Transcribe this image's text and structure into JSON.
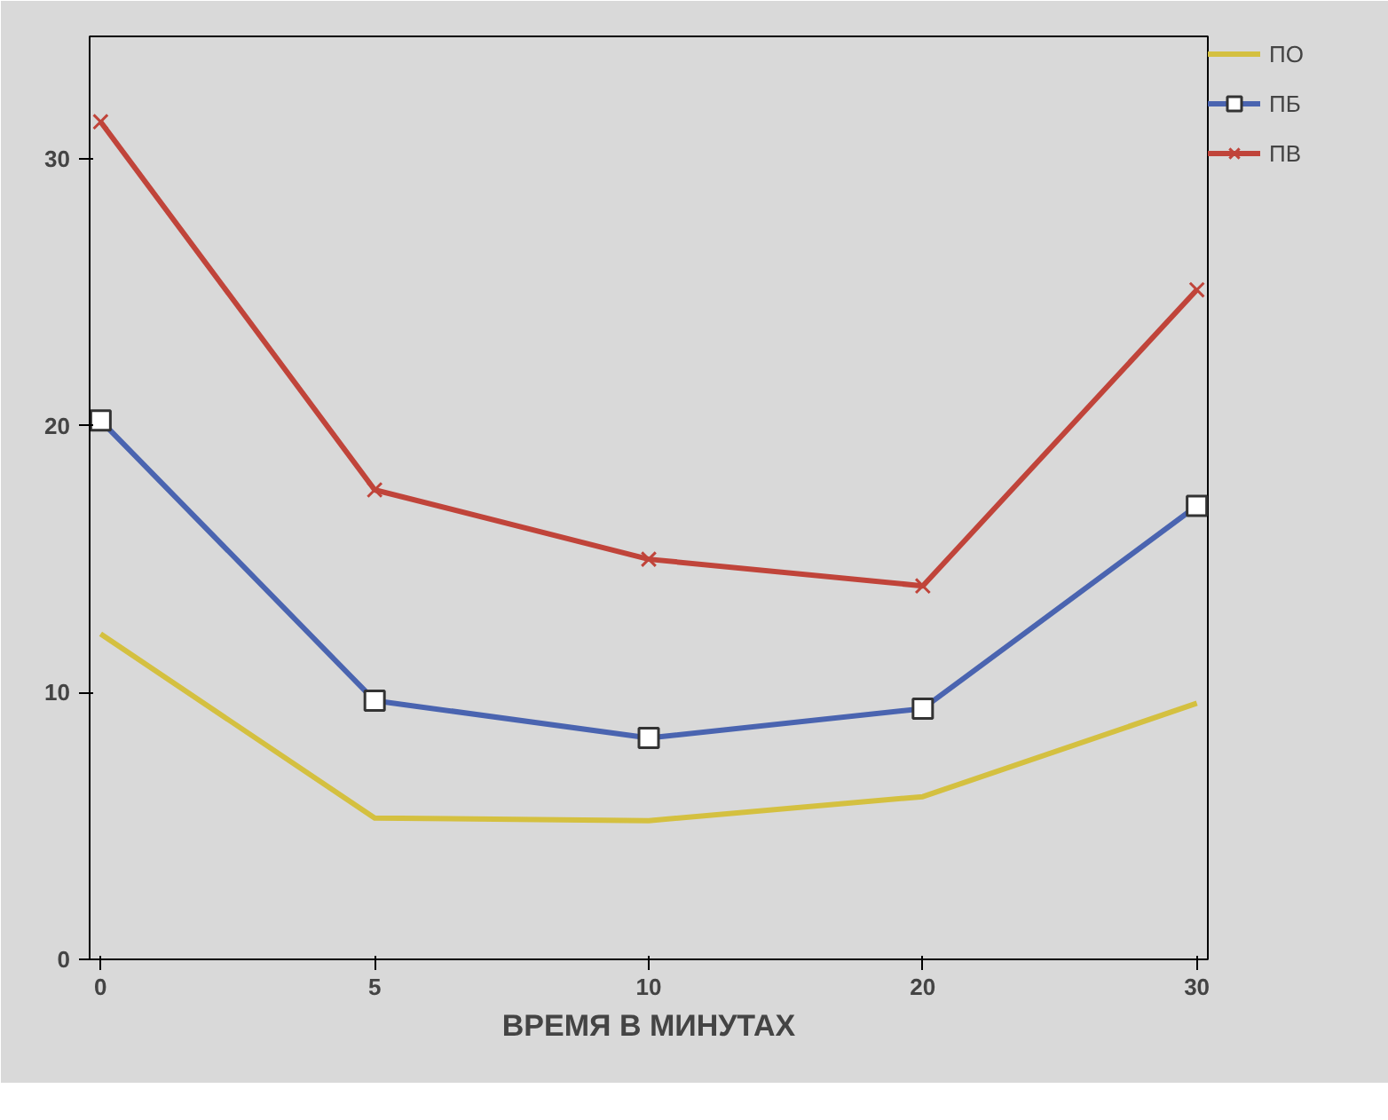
{
  "chart_data": {
    "type": "line",
    "xlabel": "ВРЕМЯ В МИНУТАХ",
    "categories": [
      "0",
      "5",
      "10",
      "20",
      "30"
    ],
    "ylim": [
      0,
      34.6
    ],
    "yticks": [
      0,
      10,
      20,
      30
    ],
    "grid": false,
    "legend": "top right",
    "line_style": "solid",
    "series": [
      {
        "name": "ПО",
        "color": "#d4c040",
        "marker": "none",
        "values": [
          12.2,
          5.3,
          5.2,
          6.1,
          9.6
        ]
      },
      {
        "name": "ПБ",
        "color": "#4a64b0",
        "marker": "square",
        "values": [
          20.2,
          9.7,
          8.3,
          9.4,
          17.0
        ]
      },
      {
        "name": "ПВ",
        "color": "#c0443a",
        "marker": "cross",
        "values": [
          31.4,
          17.6,
          15.0,
          14.0,
          25.1
        ]
      }
    ]
  }
}
